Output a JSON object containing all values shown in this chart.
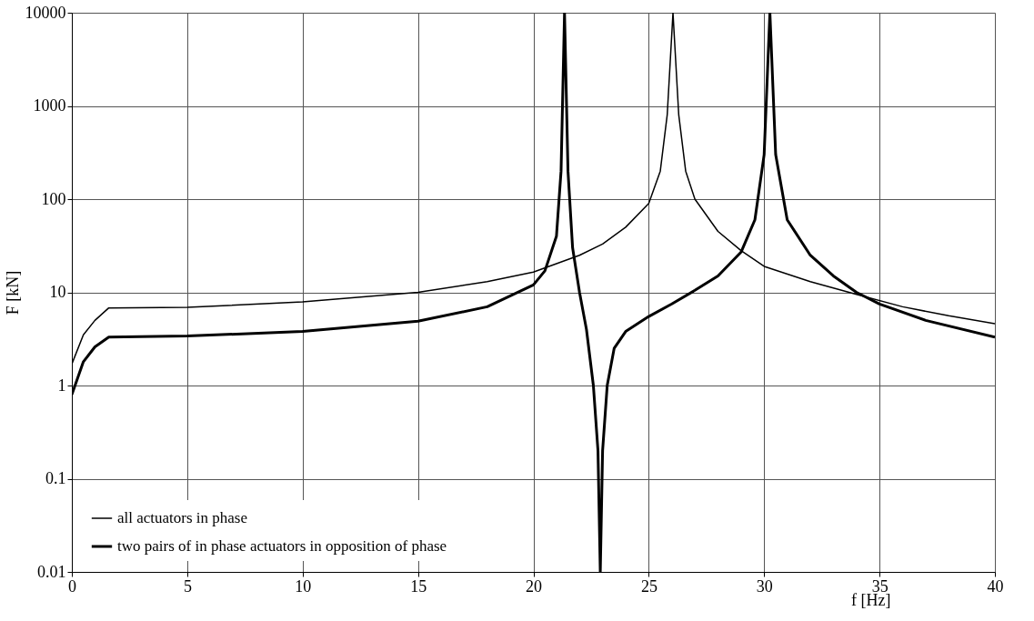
{
  "chart_data": {
    "type": "line",
    "xlabel": "f [Hz]",
    "ylabel": "F [kN]",
    "log": "y",
    "grid": true,
    "legend": "bottom left",
    "marker": "none",
    "xlim": [
      0,
      40
    ],
    "xticks": [
      0,
      5,
      10,
      15,
      20,
      25,
      30,
      35,
      40
    ],
    "ylim": [
      0.01,
      10000
    ],
    "yticks": [
      0.01,
      0.1,
      1,
      10,
      100,
      1000,
      10000
    ],
    "series": [
      {
        "name": "all actuators in phase",
        "color": "#000000",
        "x": [
          0,
          0.5,
          1,
          1.6,
          5,
          10,
          15,
          18,
          20,
          22,
          23,
          24,
          25,
          25.5,
          25.8,
          26.05,
          26.3,
          26.6,
          27,
          28,
          29,
          30,
          32,
          34,
          36,
          38,
          40
        ],
        "values": [
          1.7,
          3.5,
          5,
          6.8,
          6.9,
          7.9,
          10,
          13,
          16.5,
          25,
          33,
          50,
          90,
          200,
          800,
          10000,
          800,
          200,
          100,
          45,
          28,
          19,
          13,
          9.5,
          7,
          5.6,
          4.6
        ]
      },
      {
        "name": "two pairs of in phase actuators in opposition of phase",
        "color": "#000000",
        "x": [
          0,
          0.5,
          1,
          1.6,
          5,
          10,
          15,
          18,
          20,
          20.5,
          21,
          21.2,
          21.35,
          21.5,
          21.7,
          22,
          22.3,
          22.6,
          22.8,
          22.9,
          23.0,
          23.2,
          23.5,
          24,
          25,
          26,
          27,
          28,
          29,
          29.6,
          30,
          30.25,
          30.5,
          31,
          32,
          33,
          34,
          35,
          37,
          40
        ],
        "values": [
          0.8,
          1.8,
          2.6,
          3.3,
          3.4,
          3.8,
          4.9,
          7,
          12,
          17,
          40,
          200,
          10000,
          200,
          30,
          10,
          4,
          1,
          0.2,
          0.01,
          0.2,
          1,
          2.5,
          3.8,
          5.5,
          7.5,
          10.5,
          15,
          27,
          60,
          300,
          10000,
          300,
          60,
          25,
          15,
          10,
          7.5,
          5,
          3.3
        ]
      }
    ]
  }
}
